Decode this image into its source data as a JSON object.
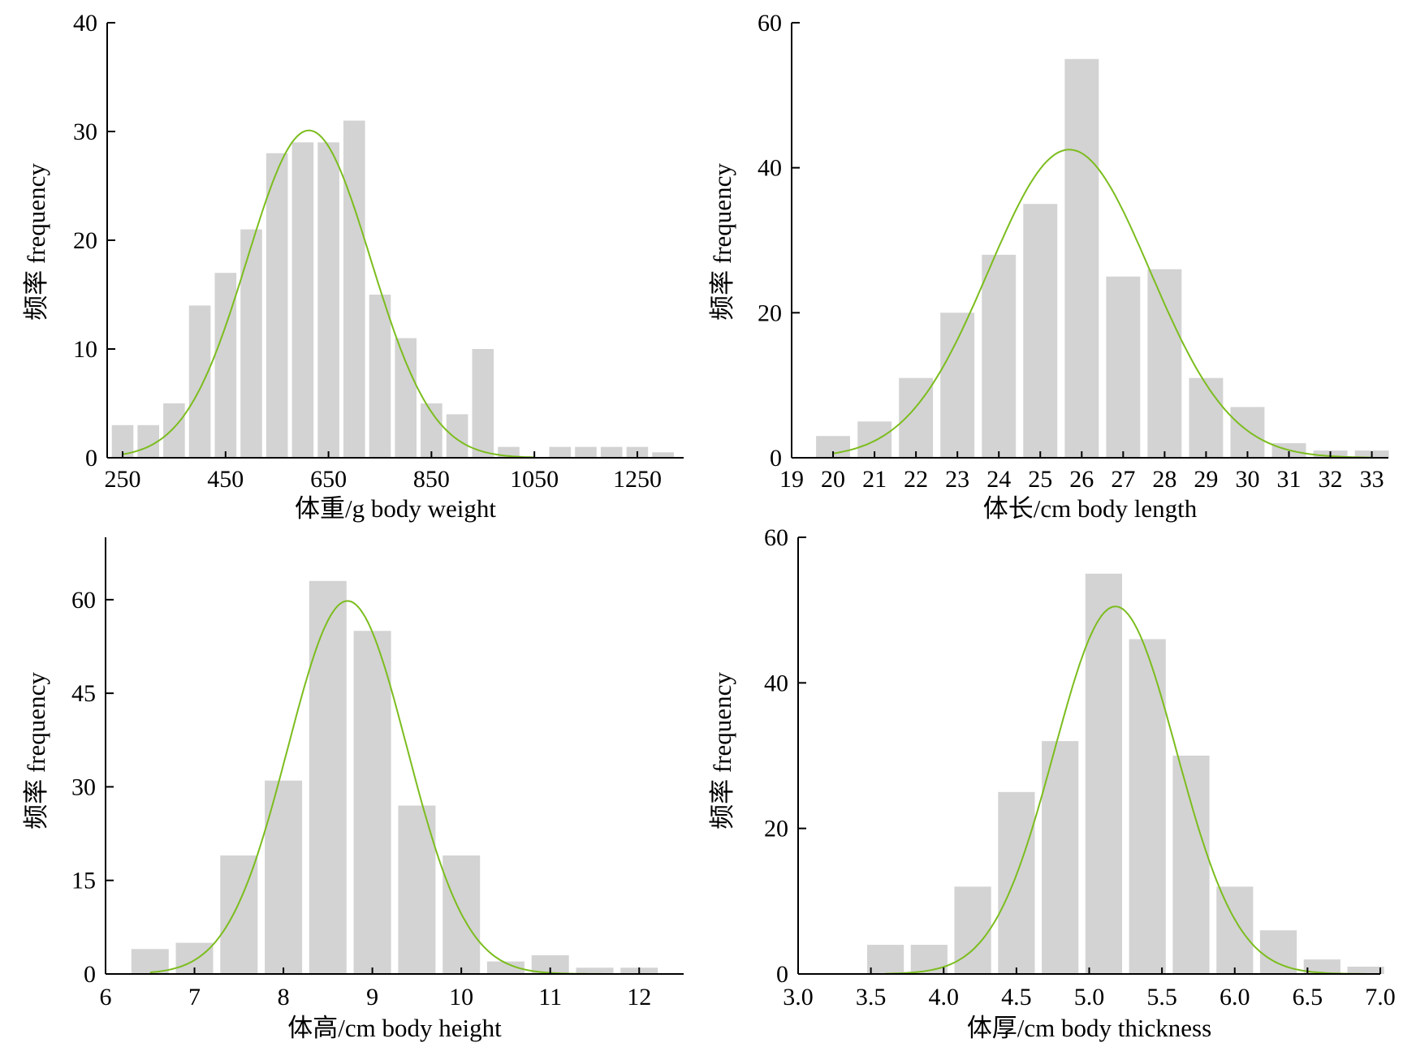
{
  "colors": {
    "bar": "#d3d3d3",
    "curve": "#7cbd1e",
    "axis": "#000000"
  },
  "chart_data": [
    {
      "type": "bar",
      "xlabel": "体重/g body weight",
      "ylabel": "频率 frequency",
      "xlim": [
        220,
        1340
      ],
      "ylim": [
        0,
        40
      ],
      "x_ticks": [
        250,
        450,
        650,
        850,
        1050,
        1250
      ],
      "y_ticks": [
        0,
        10,
        20,
        30,
        40
      ],
      "bin_width": 50,
      "bins": [
        {
          "x": 250,
          "value": 3
        },
        {
          "x": 300,
          "value": 3
        },
        {
          "x": 350,
          "value": 5
        },
        {
          "x": 400,
          "value": 14
        },
        {
          "x": 450,
          "value": 17
        },
        {
          "x": 500,
          "value": 21
        },
        {
          "x": 550,
          "value": 28
        },
        {
          "x": 600,
          "value": 29
        },
        {
          "x": 650,
          "value": 29
        },
        {
          "x": 700,
          "value": 31
        },
        {
          "x": 750,
          "value": 15
        },
        {
          "x": 800,
          "value": 11
        },
        {
          "x": 850,
          "value": 5
        },
        {
          "x": 900,
          "value": 4
        },
        {
          "x": 950,
          "value": 10
        },
        {
          "x": 1000,
          "value": 1
        },
        {
          "x": 1050,
          "value": 0
        },
        {
          "x": 1100,
          "value": 1
        },
        {
          "x": 1150,
          "value": 1
        },
        {
          "x": 1200,
          "value": 1
        },
        {
          "x": 1250,
          "value": 1
        },
        {
          "x": 1300,
          "value": 0.5
        }
      ],
      "normal_fit": {
        "mean": 612,
        "sd": 120,
        "peak": 30.1,
        "x_start": 250,
        "x_end": 1050
      }
    },
    {
      "type": "bar",
      "xlabel": "体长/cm body length",
      "ylabel": "频率 frequency",
      "xlim": [
        19,
        33.4
      ],
      "ylim": [
        0,
        60
      ],
      "x_ticks": [
        19,
        20,
        21,
        22,
        23,
        24,
        25,
        26,
        27,
        28,
        29,
        30,
        31,
        32,
        33
      ],
      "y_ticks": [
        0,
        20,
        40,
        60
      ],
      "bin_width": 1,
      "bins": [
        {
          "x": 20,
          "value": 3
        },
        {
          "x": 21,
          "value": 5
        },
        {
          "x": 22,
          "value": 11
        },
        {
          "x": 23,
          "value": 20
        },
        {
          "x": 24,
          "value": 28
        },
        {
          "x": 25,
          "value": 35
        },
        {
          "x": 26,
          "value": 55
        },
        {
          "x": 27,
          "value": 25
        },
        {
          "x": 28,
          "value": 26
        },
        {
          "x": 29,
          "value": 11
        },
        {
          "x": 30,
          "value": 7
        },
        {
          "x": 31,
          "value": 2
        },
        {
          "x": 32,
          "value": 1
        },
        {
          "x": 33,
          "value": 1
        }
      ],
      "normal_fit": {
        "mean": 25.7,
        "sd": 1.95,
        "peak": 42.5,
        "x_start": 20,
        "x_end": 33
      }
    },
    {
      "type": "bar",
      "xlabel": "体高/cm body height",
      "ylabel": "频率 frequency",
      "xlim": [
        6,
        12.5
      ],
      "ylim": [
        0,
        70
      ],
      "x_ticks": [
        6,
        7,
        8,
        9,
        10,
        11,
        12
      ],
      "y_ticks": [
        0,
        15,
        30,
        45,
        60
      ],
      "bin_width": 0.5,
      "bins": [
        {
          "x": 6.5,
          "value": 4
        },
        {
          "x": 7.0,
          "value": 5
        },
        {
          "x": 7.5,
          "value": 19
        },
        {
          "x": 8.0,
          "value": 31
        },
        {
          "x": 8.5,
          "value": 63
        },
        {
          "x": 9.0,
          "value": 55
        },
        {
          "x": 9.5,
          "value": 27
        },
        {
          "x": 10.0,
          "value": 19
        },
        {
          "x": 10.5,
          "value": 2
        },
        {
          "x": 11.0,
          "value": 3
        },
        {
          "x": 11.5,
          "value": 1
        },
        {
          "x": 12.0,
          "value": 1
        }
      ],
      "normal_fit": {
        "mean": 8.72,
        "sd": 0.67,
        "peak": 59.8,
        "x_start": 6.5,
        "x_end": 12
      }
    },
    {
      "type": "bar",
      "xlabel": "体厚/cm body thickness",
      "ylabel": "频率 frequency",
      "xlim": [
        3.0,
        7.0
      ],
      "ylim": [
        0,
        60
      ],
      "x_ticks": [
        "3.0",
        "3.5",
        "4.0",
        "4.5",
        "5.0",
        "5.5",
        "6.0",
        "6.5",
        "7.0"
      ],
      "y_ticks": [
        0,
        20,
        40,
        60
      ],
      "bin_width": 0.3,
      "bins": [
        {
          "x": 3.6,
          "value": 4
        },
        {
          "x": 3.9,
          "value": 4
        },
        {
          "x": 4.2,
          "value": 12
        },
        {
          "x": 4.5,
          "value": 25
        },
        {
          "x": 4.8,
          "value": 32
        },
        {
          "x": 5.1,
          "value": 55
        },
        {
          "x": 5.4,
          "value": 46
        },
        {
          "x": 5.7,
          "value": 30
        },
        {
          "x": 6.0,
          "value": 12
        },
        {
          "x": 6.3,
          "value": 6
        },
        {
          "x": 6.6,
          "value": 2
        },
        {
          "x": 6.9,
          "value": 1
        }
      ],
      "normal_fit": {
        "mean": 5.18,
        "sd": 0.42,
        "peak": 50.5,
        "x_start": 3.6,
        "x_end": 6.9
      }
    }
  ]
}
